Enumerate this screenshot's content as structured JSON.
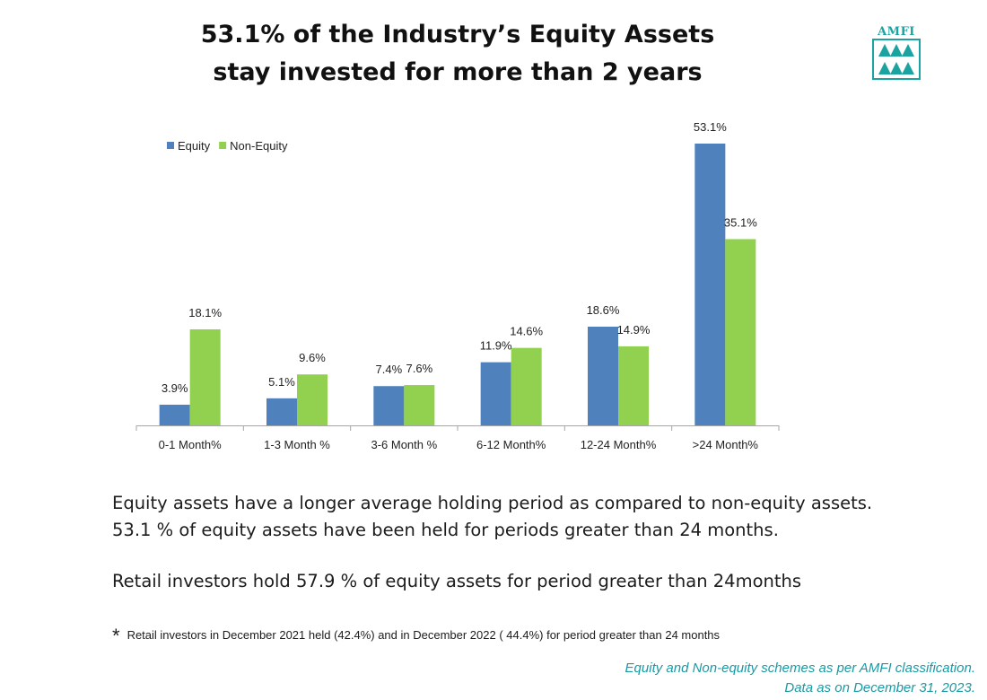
{
  "title_line1": "53.1% of the Industry’s Equity Assets",
  "title_line2": "stay invested for more than 2 years",
  "logo_text": "AMFI",
  "colors": {
    "equity": "#4f81bd",
    "non_equity": "#92d050",
    "accent": "#1aa3a0"
  },
  "chart_data": {
    "type": "bar",
    "categories": [
      "0-1 Month%",
      "1-3 Month %",
      "3-6 Month %",
      "6-12 Month%",
      "12-24 Month%",
      ">24 Month%"
    ],
    "series": [
      {
        "name": "Equity",
        "values": [
          3.9,
          5.1,
          7.4,
          11.9,
          18.6,
          53.1
        ],
        "labels": [
          "3.9%",
          "5.1%",
          "7.4%",
          "11.9%",
          "18.6%",
          "53.1%"
        ],
        "color": "#4f81bd"
      },
      {
        "name": "Non-Equity",
        "values": [
          18.1,
          9.6,
          7.6,
          14.6,
          14.9,
          35.1
        ],
        "labels": [
          "18.1%",
          "9.6%",
          "7.6%",
          "14.6%",
          "14.9%",
          "35.1%"
        ],
        "color": "#92d050"
      }
    ],
    "title": "",
    "xlabel": "",
    "ylabel": "",
    "ylim": [
      0,
      53.1
    ],
    "grid": false,
    "legend_position": "top-left"
  },
  "text": {
    "para1_line1": "Equity assets have a longer average holding period as compared to non-equity assets.",
    "para1_line2": "53.1 % of equity assets have been held for periods greater than 24 months.",
    "para2": "Retail investors hold 57.9 % of equity  assets  for period greater than 24months",
    "footnote_star": "*",
    "footnote": "Retail investors in December 2021 held (42.4%)  and in  December 2022 ( 44.4%) for period greater than 24 months",
    "source_line1": "Equity and Non-equity schemes as per AMFI classification.",
    "source_line2": "Data as on December 31, 2023."
  }
}
